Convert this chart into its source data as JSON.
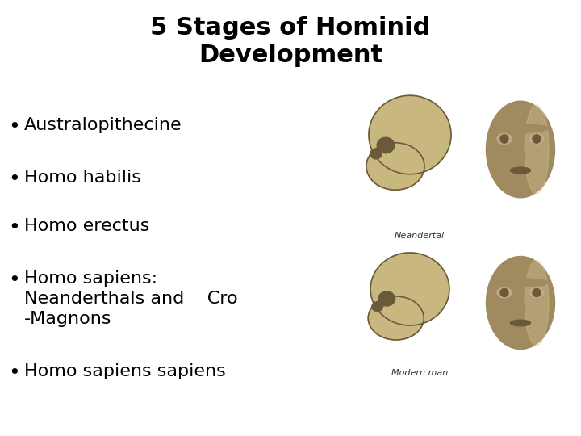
{
  "title_line1": "5 Stages of Hominid",
  "title_line2": "Development",
  "title_fontsize": 22,
  "title_fontweight": "bold",
  "bullet_items": [
    "Australopithecine",
    "Homo habilis",
    "Homo erectus",
    "Homo sapiens:\nNeanderthals and    Cro\n-Magnons",
    "Homo sapiens sapiens"
  ],
  "bullet_fontsize": 16,
  "background_color": "#ffffff",
  "text_color": "#000000",
  "image_bg_color": "#ddd0a0",
  "label_neandertal": "Neandertal",
  "label_modern": "Modern man",
  "label_fontsize": 7,
  "fig_width": 7.2,
  "fig_height": 5.4,
  "dpi": 100
}
